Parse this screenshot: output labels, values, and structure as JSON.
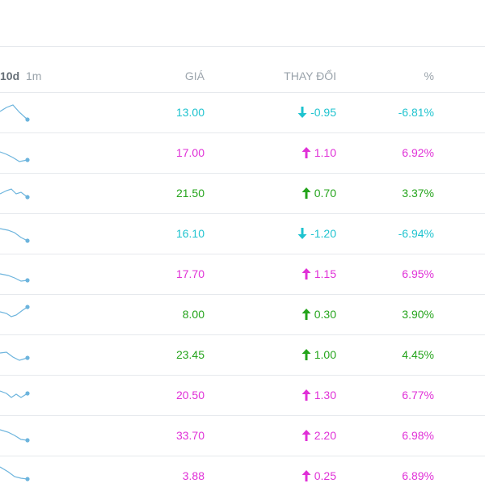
{
  "header": {
    "range_10d": "10d",
    "range_1m": "1m",
    "price": "GIÁ",
    "change": "THAY ĐỔI",
    "percent": "%"
  },
  "colors": {
    "down": "#1ec3cf",
    "ceiling": "#e030d7",
    "up": "#24a41b",
    "sparkline": "#6cb4dd"
  },
  "rows": [
    {
      "price": "13.00",
      "change": "-0.95",
      "percent": "-6.81%",
      "status": "down",
      "arrow": "arrow-down-icon"
    },
    {
      "price": "17.00",
      "change": "1.10",
      "percent": "6.92%",
      "status": "ceiling",
      "arrow": "arrow-up-icon"
    },
    {
      "price": "21.50",
      "change": "0.70",
      "percent": "3.37%",
      "status": "up",
      "arrow": "arrow-up-icon"
    },
    {
      "price": "16.10",
      "change": "-1.20",
      "percent": "-6.94%",
      "status": "down",
      "arrow": "arrow-down-icon"
    },
    {
      "price": "17.70",
      "change": "1.15",
      "percent": "6.95%",
      "status": "ceiling",
      "arrow": "arrow-up-icon"
    },
    {
      "price": "8.00",
      "change": "0.30",
      "percent": "3.90%",
      "status": "up",
      "arrow": "arrow-up-icon"
    },
    {
      "price": "23.45",
      "change": "1.00",
      "percent": "4.45%",
      "status": "up",
      "arrow": "arrow-up-icon"
    },
    {
      "price": "20.50",
      "change": "1.30",
      "percent": "6.77%",
      "status": "ceiling",
      "arrow": "arrow-up-icon"
    },
    {
      "price": "33.70",
      "change": "2.20",
      "percent": "6.98%",
      "status": "ceiling",
      "arrow": "arrow-up-icon"
    },
    {
      "price": "3.88",
      "change": "0.25",
      "percent": "6.89%",
      "status": "ceiling",
      "arrow": "arrow-up-icon"
    }
  ]
}
